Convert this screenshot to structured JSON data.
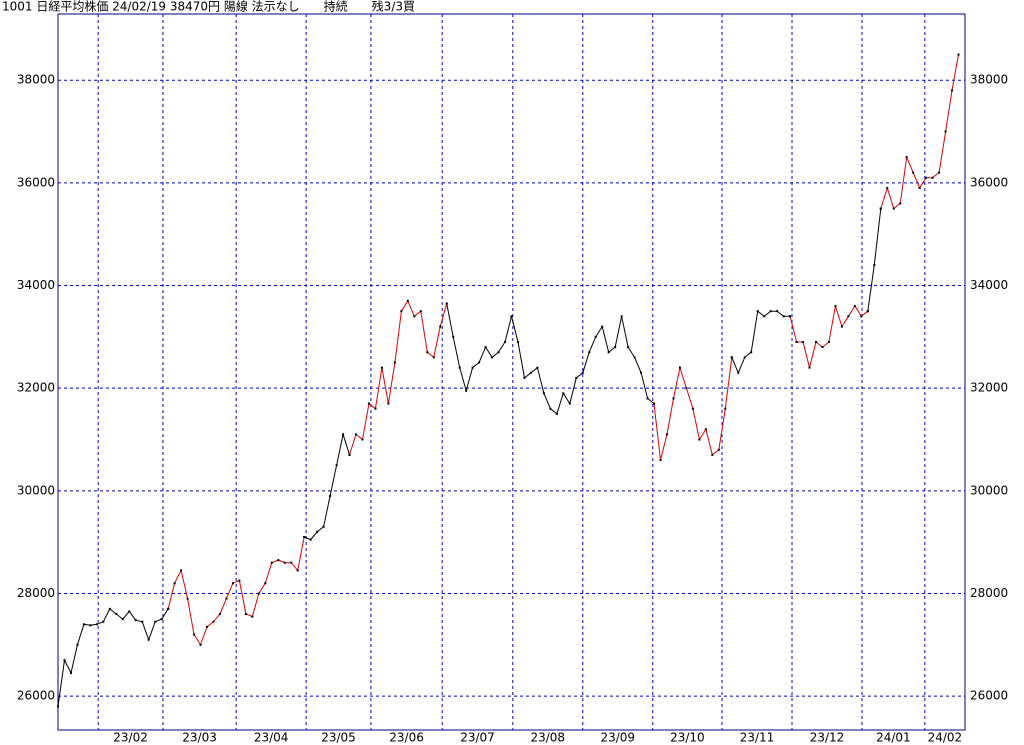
{
  "chart_data": {
    "type": "line",
    "title": "1001 日経平均株価 24/02/19 38470円 陽線 法示なし　　持続　　残3/3買",
    "xlim": [
      0,
      140
    ],
    "xticks": [
      {
        "value": 6.2,
        "label": "23/02"
      },
      {
        "value": 16.2,
        "label": "23/03"
      },
      {
        "value": 27.5,
        "label": "23/04"
      },
      {
        "value": 38.3,
        "label": "23/05"
      },
      {
        "value": 48.3,
        "label": "23/06"
      },
      {
        "value": 59.3,
        "label": "23/07"
      },
      {
        "value": 70.2,
        "label": "23/08"
      },
      {
        "value": 81.0,
        "label": "23/09"
      },
      {
        "value": 91.8,
        "label": "23/10"
      },
      {
        "value": 102.5,
        "label": "23/11"
      },
      {
        "value": 113.3,
        "label": "23/12"
      },
      {
        "value": 124.1,
        "label": "24/01"
      },
      {
        "value": 133.8,
        "label": "24/02"
      }
    ],
    "ylim": [
      25340,
      39290
    ],
    "yticks": [
      26000,
      28000,
      30000,
      32000,
      34000,
      36000,
      38000
    ],
    "grid": true,
    "series": [
      {
        "color": "#000000",
        "values": [
          25800,
          26700,
          26450,
          27000,
          27400,
          27380,
          27400,
          27450,
          27700,
          27600,
          27500,
          27650,
          27480,
          27450,
          27100,
          27450,
          27500,
          27700,
          null,
          null,
          null,
          null,
          null,
          null,
          null,
          null,
          null,
          null,
          null,
          null,
          null,
          null,
          null,
          null,
          null,
          null,
          null,
          null,
          29100,
          29050,
          29200,
          29300,
          29900,
          30500,
          31100,
          30700,
          null,
          null,
          null,
          null,
          null,
          null,
          null,
          null,
          null,
          null,
          null,
          null,
          null,
          null,
          33650,
          33000,
          32400,
          31950,
          32400,
          32500,
          32800,
          32600,
          32700,
          32900,
          33400,
          32900,
          32200,
          32300,
          32400,
          31900,
          31600,
          31500,
          31900,
          31700,
          32200,
          32300,
          32700,
          33000,
          33200,
          32700,
          32800,
          33400,
          32800,
          32600,
          32300,
          31800,
          31700,
          null,
          null,
          null,
          null,
          null,
          null,
          null,
          null,
          null,
          null,
          null,
          32600,
          32300,
          32600,
          32700,
          33500,
          33400,
          33500,
          33500,
          33400,
          33400,
          null,
          null,
          null,
          null,
          null,
          null,
          null,
          null,
          null,
          null,
          null,
          33500,
          34400,
          35500,
          null,
          null,
          null,
          null,
          null,
          null,
          null,
          null,
          null,
          null,
          null,
          null
        ]
      },
      {
        "color": "#e00000",
        "values": [
          null,
          null,
          null,
          null,
          null,
          null,
          null,
          null,
          null,
          null,
          null,
          null,
          null,
          null,
          null,
          null,
          null,
          27700,
          28200,
          28450,
          27900,
          27200,
          27000,
          27350,
          27450,
          27600,
          27900,
          28200,
          28250,
          27600,
          27550,
          28000,
          28200,
          28600,
          28650,
          28600,
          28600,
          28450,
          29100,
          null,
          null,
          null,
          null,
          null,
          null,
          30700,
          31100,
          31000,
          31700,
          31600,
          32400,
          31700,
          32500,
          33500,
          33700,
          33400,
          33500,
          32700,
          32600,
          33200,
          33650,
          null,
          null,
          null,
          null,
          null,
          null,
          null,
          null,
          null,
          null,
          null,
          null,
          null,
          null,
          null,
          null,
          null,
          null,
          null,
          null,
          null,
          null,
          null,
          null,
          null,
          null,
          null,
          null,
          null,
          null,
          null,
          31700,
          30600,
          31100,
          31800,
          32400,
          32000,
          31600,
          31000,
          31200,
          30700,
          30800,
          31600,
          32600,
          null,
          null,
          null,
          null,
          null,
          null,
          null,
          null,
          33400,
          32900,
          32900,
          32400,
          32900,
          32800,
          32900,
          33600,
          33200,
          33400,
          33600,
          33400,
          33500,
          null,
          35500,
          35900,
          35500,
          35600,
          36500,
          36200,
          35900,
          36100,
          36100,
          36200,
          37000,
          37800,
          38500
        ]
      }
    ]
  }
}
